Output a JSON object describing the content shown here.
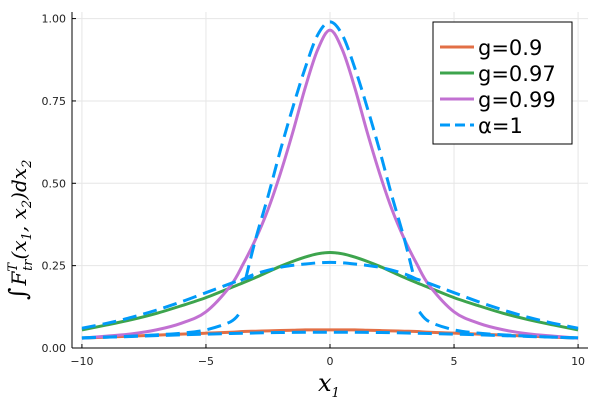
{
  "chart_data": {
    "type": "line",
    "title": "",
    "xlabel": "x",
    "xlabel_sub": "1",
    "ylabel_parts": {
      "integral": "∫",
      "F": "F",
      "sup": "T",
      "sub": "tr",
      "args": "(x",
      "a1": "1",
      "comma": ", x",
      "a2": "2",
      "close": ")dx",
      "d2": "2"
    },
    "xlim": [
      -10.4,
      10.4
    ],
    "ylim": [
      0,
      1.02
    ],
    "grid": true,
    "legend_position": "top-right",
    "xticks": [
      -10,
      -5,
      0,
      5,
      10
    ],
    "xtick_labels": [
      "−10",
      "−5",
      "0",
      "5",
      "10"
    ],
    "yticks": [
      0,
      0.25,
      0.5,
      0.75,
      1.0
    ],
    "ytick_labels": [
      "0.00",
      "0.25",
      "0.50",
      "0.75",
      "1.00"
    ],
    "x": [
      -10,
      -9,
      -8,
      -7,
      -6,
      -5,
      -4,
      -3.5,
      -3,
      -2.5,
      -2,
      -1.5,
      -1,
      -0.5,
      0,
      0.5,
      1,
      1.5,
      2,
      2.5,
      3,
      3.5,
      4,
      5,
      6,
      7,
      8,
      9,
      10
    ],
    "series": [
      {
        "name": "g=0.9",
        "color": "#e26f46",
        "dash": "solid",
        "values": [
          0.03,
          0.033,
          0.036,
          0.039,
          0.042,
          0.045,
          0.048,
          0.05,
          0.051,
          0.052,
          0.053,
          0.054,
          0.055,
          0.055,
          0.055,
          0.055,
          0.055,
          0.054,
          0.053,
          0.052,
          0.051,
          0.05,
          0.048,
          0.045,
          0.042,
          0.039,
          0.036,
          0.033,
          0.03
        ]
      },
      {
        "name": "g=0.97",
        "color": "#3da44d",
        "dash": "solid",
        "values": [
          0.055,
          0.07,
          0.086,
          0.105,
          0.128,
          0.153,
          0.183,
          0.198,
          0.214,
          0.231,
          0.248,
          0.263,
          0.276,
          0.286,
          0.29,
          0.286,
          0.276,
          0.263,
          0.248,
          0.231,
          0.214,
          0.198,
          0.183,
          0.153,
          0.128,
          0.105,
          0.086,
          0.07,
          0.055
        ]
      },
      {
        "name": "g=0.99",
        "color": "#c271d2",
        "dash": "solid",
        "values": [
          0.03,
          0.036,
          0.043,
          0.055,
          0.075,
          0.11,
          0.19,
          0.255,
          0.33,
          0.42,
          0.53,
          0.655,
          0.79,
          0.905,
          0.965,
          0.905,
          0.79,
          0.655,
          0.53,
          0.42,
          0.33,
          0.255,
          0.19,
          0.11,
          0.075,
          0.055,
          0.043,
          0.036,
          0.03
        ]
      },
      {
        "name": "α=1",
        "color": "#009af9",
        "dash": "dashed",
        "curves": [
          {
            "x": [
              -10,
              -9,
              -8,
              -7,
              -6,
              -5,
              -4.5,
              -4,
              -3.75,
              -3.5,
              -3.25,
              -3.1
            ],
            "values": [
              0.06,
              0.075,
              0.093,
              0.115,
              0.14,
              0.168,
              0.182,
              0.196,
              0.203,
              0.209,
              0.214,
              0.216
            ]
          },
          {
            "x": [
              -3.4,
              -3,
              -2.5,
              -2,
              -1.5,
              -1,
              -0.5,
              0,
              0.5,
              1,
              1.5,
              2,
              2.5,
              3,
              3.4
            ],
            "values": [
              0.21,
              0.33,
              0.46,
              0.6,
              0.73,
              0.85,
              0.95,
              0.99,
              0.95,
              0.85,
              0.73,
              0.6,
              0.46,
              0.33,
              0.21
            ]
          },
          {
            "x": [
              3.1,
              3.25,
              3.5,
              3.75,
              4,
              4.5,
              5,
              6,
              7,
              8,
              9,
              10
            ],
            "values": [
              0.216,
              0.214,
              0.209,
              0.203,
              0.196,
              0.182,
              0.168,
              0.14,
              0.115,
              0.093,
              0.075,
              0.06
            ]
          },
          {
            "x": [
              -10,
              -9,
              -8,
              -7,
              -6,
              -5,
              -4,
              -3.6
            ],
            "values": [
              0.03,
              0.033,
              0.036,
              0.04,
              0.045,
              0.055,
              0.08,
              0.11
            ]
          },
          {
            "x": [
              -3.6,
              -3,
              -2,
              -1,
              0,
              1,
              2,
              3,
              3.6
            ],
            "values": [
              0.205,
              0.225,
              0.245,
              0.255,
              0.26,
              0.255,
              0.245,
              0.225,
              0.205
            ]
          },
          {
            "x": [
              3.6,
              4,
              5,
              6,
              7,
              8,
              9,
              10
            ],
            "values": [
              0.11,
              0.08,
              0.055,
              0.045,
              0.04,
              0.036,
              0.033,
              0.03
            ]
          },
          {
            "x": [
              -10,
              -8,
              -6,
              -4,
              -2,
              0,
              2,
              4,
              6,
              8,
              10
            ],
            "values": [
              0.031,
              0.035,
              0.04,
              0.044,
              0.047,
              0.048,
              0.047,
              0.044,
              0.04,
              0.035,
              0.031
            ]
          }
        ]
      }
    ]
  }
}
